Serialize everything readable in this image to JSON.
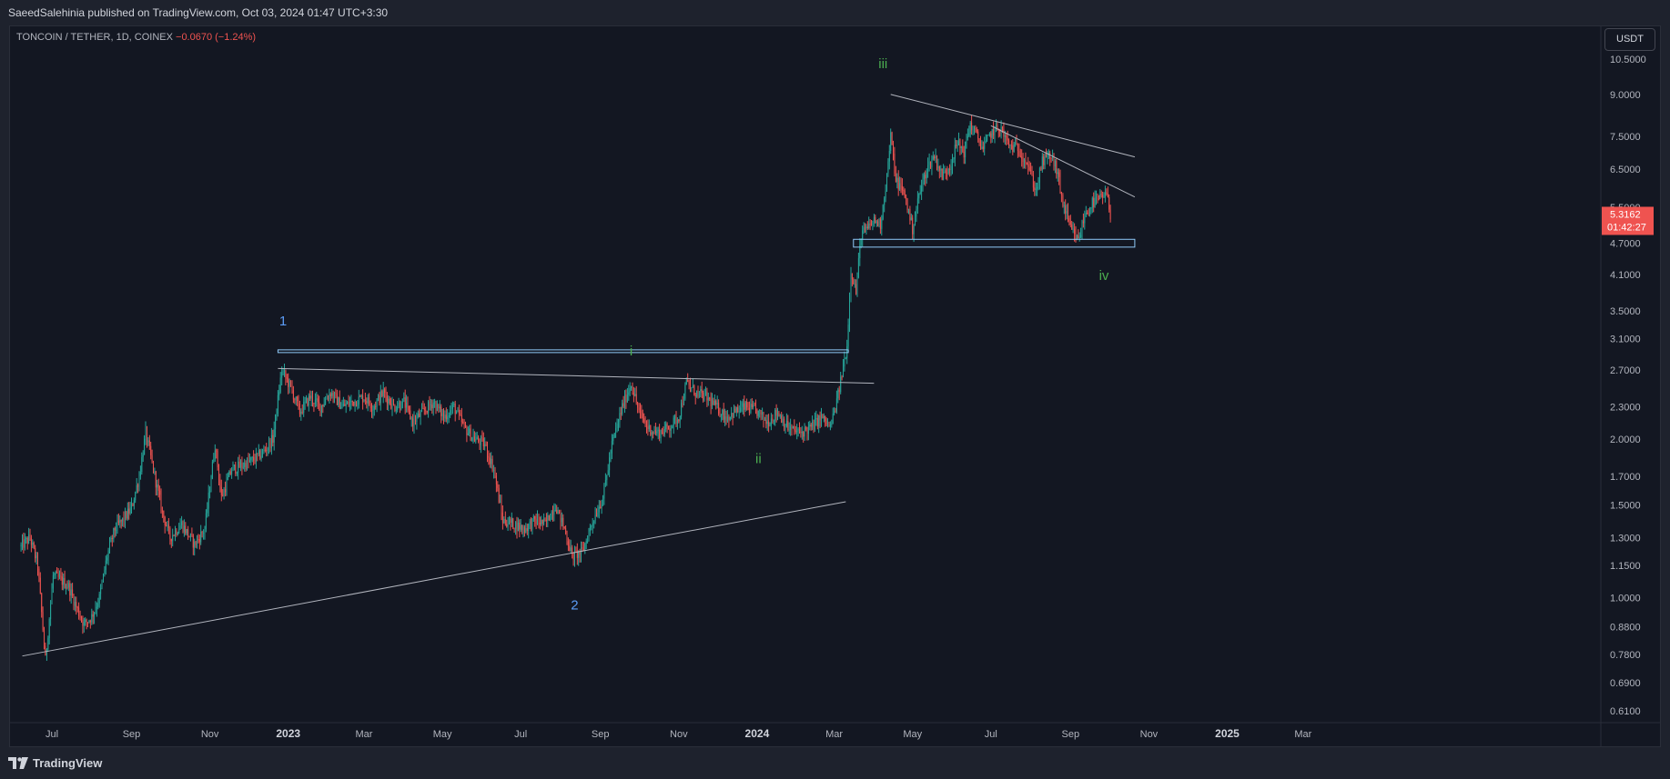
{
  "header": {
    "publisher_line": "SaeedSalehinia published on TradingView.com, Oct 03, 2024 01:47 UTC+3:30"
  },
  "legend": {
    "symbol_line": "TONCOIN / TETHER, 1D, COINEX",
    "change": "−0.0670 (−1.24%)"
  },
  "price_scale": {
    "unit": "USDT",
    "last_price": "5.3162",
    "countdown": "01:42:27",
    "last_price_color": "#ef5350"
  },
  "footer": {
    "brand": "TradingView"
  },
  "colors": {
    "up": "#26a69a",
    "down": "#ef5350",
    "wave_major": "#5b9cf6",
    "wave_minor": "#4caf50",
    "trendline": "#b2b5be",
    "zone_border": "#90caf9"
  },
  "chart_data": {
    "type": "candlestick",
    "scale": "log",
    "ylim": [
      0.58,
      11.2
    ],
    "x_tick_labels": [
      "Jul",
      "Sep",
      "Nov",
      "2023",
      "Mar",
      "May",
      "Jul",
      "Sep",
      "Nov",
      "2024",
      "Mar",
      "May",
      "Jul",
      "Sep",
      "Nov",
      "2025",
      "Mar"
    ],
    "y_tick_labels": [
      "10.5000",
      "9.0000",
      "7.5000",
      "6.5000",
      "5.5000",
      "4.7000",
      "4.1000",
      "3.5000",
      "3.1000",
      "2.7000",
      "2.3000",
      "2.0000",
      "1.7000",
      "1.5000",
      "1.3000",
      "1.1500",
      "1.0000",
      "0.8800",
      "0.7800",
      "0.6900",
      "0.6100"
    ],
    "price_path": [
      [
        "2022-06-07",
        1.25
      ],
      [
        "2022-06-14",
        1.3
      ],
      [
        "2022-06-20",
        1.15
      ],
      [
        "2022-06-26",
        0.76
      ],
      [
        "2022-07-02",
        1.1
      ],
      [
        "2022-07-08",
        1.08
      ],
      [
        "2022-07-14",
        1.05
      ],
      [
        "2022-07-20",
        0.96
      ],
      [
        "2022-07-26",
        0.89
      ],
      [
        "2022-08-01",
        0.92
      ],
      [
        "2022-08-07",
        1.0
      ],
      [
        "2022-08-13",
        1.2
      ],
      [
        "2022-08-19",
        1.35
      ],
      [
        "2022-08-25",
        1.4
      ],
      [
        "2022-09-01",
        1.48
      ],
      [
        "2022-09-07",
        1.7
      ],
      [
        "2022-09-12",
        2.05
      ],
      [
        "2022-09-18",
        1.75
      ],
      [
        "2022-09-25",
        1.45
      ],
      [
        "2022-10-01",
        1.3
      ],
      [
        "2022-10-10",
        1.38
      ],
      [
        "2022-10-20",
        1.26
      ],
      [
        "2022-10-28",
        1.35
      ],
      [
        "2022-11-05",
        1.95
      ],
      [
        "2022-11-10",
        1.55
      ],
      [
        "2022-11-18",
        1.75
      ],
      [
        "2022-11-26",
        1.78
      ],
      [
        "2022-12-04",
        1.82
      ],
      [
        "2022-12-12",
        1.88
      ],
      [
        "2022-12-20",
        2.0
      ],
      [
        "2022-12-27",
        2.7
      ],
      [
        "2023-01-03",
        2.5
      ],
      [
        "2023-01-10",
        2.25
      ],
      [
        "2023-01-18",
        2.4
      ],
      [
        "2023-01-26",
        2.3
      ],
      [
        "2023-02-03",
        2.45
      ],
      [
        "2023-02-12",
        2.3
      ],
      [
        "2023-02-20",
        2.35
      ],
      [
        "2023-03-01",
        2.4
      ],
      [
        "2023-03-08",
        2.3
      ],
      [
        "2023-03-16",
        2.45
      ],
      [
        "2023-03-24",
        2.3
      ],
      [
        "2023-04-01",
        2.35
      ],
      [
        "2023-04-08",
        2.15
      ],
      [
        "2023-04-16",
        2.25
      ],
      [
        "2023-04-24",
        2.35
      ],
      [
        "2023-05-02",
        2.2
      ],
      [
        "2023-05-10",
        2.3
      ],
      [
        "2023-05-18",
        2.1
      ],
      [
        "2023-05-26",
        2.0
      ],
      [
        "2023-06-03",
        1.95
      ],
      [
        "2023-06-10",
        1.75
      ],
      [
        "2023-06-17",
        1.4
      ],
      [
        "2023-06-25",
        1.38
      ],
      [
        "2023-07-04",
        1.35
      ],
      [
        "2023-07-12",
        1.4
      ],
      [
        "2023-07-20",
        1.38
      ],
      [
        "2023-07-28",
        1.5
      ],
      [
        "2023-08-04",
        1.35
      ],
      [
        "2023-08-10",
        1.2
      ],
      [
        "2023-08-18",
        1.22
      ],
      [
        "2023-08-26",
        1.4
      ],
      [
        "2023-09-03",
        1.55
      ],
      [
        "2023-09-10",
        1.95
      ],
      [
        "2023-09-18",
        2.3
      ],
      [
        "2023-09-25",
        2.55
      ],
      [
        "2023-10-01",
        2.25
      ],
      [
        "2023-10-08",
        2.1
      ],
      [
        "2023-10-16",
        2.05
      ],
      [
        "2023-10-24",
        2.1
      ],
      [
        "2023-11-01",
        2.2
      ],
      [
        "2023-11-07",
        2.55
      ],
      [
        "2023-11-14",
        2.45
      ],
      [
        "2023-11-22",
        2.4
      ],
      [
        "2023-11-30",
        2.3
      ],
      [
        "2023-12-08",
        2.2
      ],
      [
        "2023-12-15",
        2.25
      ],
      [
        "2023-12-23",
        2.3
      ],
      [
        "2024-01-01",
        2.25
      ],
      [
        "2024-01-09",
        2.15
      ],
      [
        "2024-01-17",
        2.25
      ],
      [
        "2024-01-25",
        2.1
      ],
      [
        "2024-02-03",
        2.05
      ],
      [
        "2024-02-12",
        2.1
      ],
      [
        "2024-02-20",
        2.2
      ],
      [
        "2024-02-27",
        2.1
      ],
      [
        "2024-03-03",
        2.35
      ],
      [
        "2024-03-07",
        2.65
      ],
      [
        "2024-03-11",
        3.0
      ],
      [
        "2024-03-14",
        4.2
      ],
      [
        "2024-03-18",
        3.8
      ],
      [
        "2024-03-22",
        4.9
      ],
      [
        "2024-03-27",
        5.0
      ],
      [
        "2024-04-01",
        5.2
      ],
      [
        "2024-04-06",
        5.1
      ],
      [
        "2024-04-11",
        6.3
      ],
      [
        "2024-04-14",
        7.5
      ],
      [
        "2024-04-18",
        6.2
      ],
      [
        "2024-04-25",
        5.8
      ],
      [
        "2024-05-01",
        5.0
      ],
      [
        "2024-05-06",
        5.8
      ],
      [
        "2024-05-12",
        6.5
      ],
      [
        "2024-05-18",
        6.9
      ],
      [
        "2024-05-24",
        6.3
      ],
      [
        "2024-05-30",
        6.6
      ],
      [
        "2024-06-05",
        7.3
      ],
      [
        "2024-06-10",
        7.0
      ],
      [
        "2024-06-15",
        7.9
      ],
      [
        "2024-06-20",
        7.5
      ],
      [
        "2024-06-25",
        7.1
      ],
      [
        "2024-07-01",
        7.6
      ],
      [
        "2024-07-08",
        7.8
      ],
      [
        "2024-07-15",
        7.2
      ],
      [
        "2024-07-22",
        7.1
      ],
      [
        "2024-07-29",
        6.7
      ],
      [
        "2024-08-05",
        5.9
      ],
      [
        "2024-08-10",
        6.7
      ],
      [
        "2024-08-16",
        6.9
      ],
      [
        "2024-08-21",
        6.5
      ],
      [
        "2024-08-26",
        5.6
      ],
      [
        "2024-09-01",
        5.0
      ],
      [
        "2024-09-07",
        4.75
      ],
      [
        "2024-09-12",
        5.3
      ],
      [
        "2024-09-18",
        5.6
      ],
      [
        "2024-09-24",
        5.7
      ],
      [
        "2024-09-29",
        5.8
      ],
      [
        "2024-10-02",
        5.32
      ]
    ],
    "annotations": [
      {
        "label": "1",
        "date": "2022-12-28",
        "price": 3.28,
        "tier": "major"
      },
      {
        "label": "2",
        "date": "2023-08-12",
        "price": 0.95,
        "tier": "major"
      },
      {
        "label": "i",
        "date": "2023-09-25",
        "price": 2.88,
        "tier": "minor"
      },
      {
        "label": "ii",
        "date": "2024-01-02",
        "price": 1.8,
        "tier": "minor"
      },
      {
        "label": "iii",
        "date": "2024-04-08",
        "price": 10.1,
        "tier": "minor"
      },
      {
        "label": "iv",
        "date": "2024-09-27",
        "price": 4.0,
        "tier": "minor"
      }
    ],
    "trendlines": [
      {
        "from": [
          "2022-06-08",
          0.775
        ],
        "to": [
          "2024-03-10",
          1.52
        ]
      },
      {
        "from": [
          "2022-12-24",
          2.72
        ],
        "to": [
          "2024-04-01",
          2.55
        ]
      },
      {
        "from": [
          "2024-04-14",
          9.0
        ],
        "to": [
          "2024-10-21",
          6.85
        ]
      },
      {
        "from": [
          "2024-07-01",
          7.85
        ],
        "to": [
          "2024-10-21",
          5.75
        ]
      }
    ],
    "zones": [
      {
        "from": "2022-12-24",
        "to": "2024-03-12",
        "high": 2.95,
        "low": 2.92
      },
      {
        "from": "2024-03-16",
        "to": "2024-10-21",
        "high": 4.78,
        "low": 4.62
      }
    ]
  }
}
